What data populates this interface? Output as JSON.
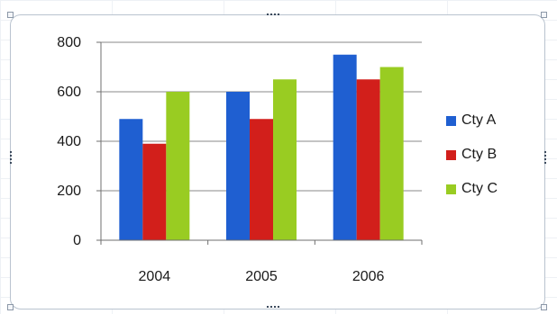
{
  "colors": {
    "series_a": "#1f5fd1",
    "series_b": "#d21f1b",
    "series_c": "#99cc22",
    "axis": "#6f6f6f",
    "gridline": "#8a8a8a",
    "frame_border": "#b9c3cf"
  },
  "chart_data": {
    "type": "bar",
    "title": "",
    "xlabel": "",
    "ylabel": "",
    "categories": [
      "2004",
      "2005",
      "2006"
    ],
    "series": [
      {
        "name": "Cty A",
        "values": [
          490,
          600,
          750
        ]
      },
      {
        "name": "Cty B",
        "values": [
          390,
          490,
          650
        ]
      },
      {
        "name": "Cty C",
        "values": [
          600,
          650,
          700
        ]
      }
    ],
    "ylim": [
      0,
      800
    ],
    "yticks": [
      "0",
      "200",
      "400",
      "600",
      "800"
    ],
    "grid": true,
    "legend_position": "right"
  }
}
